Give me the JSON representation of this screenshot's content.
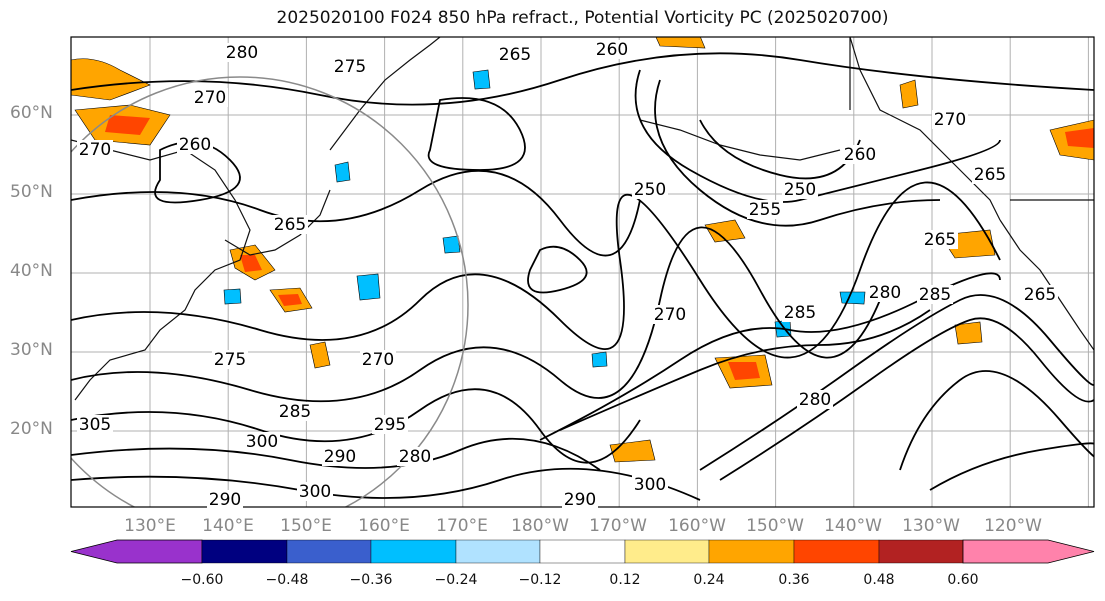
{
  "title": "2025020100 F024 850 hPa refract., Potential Vorticity PC (2025020700)",
  "map": {
    "lat_labels": [
      "60°N",
      "50°N",
      "40°N",
      "30°N",
      "20°N"
    ],
    "lon_labels": [
      "130°E",
      "140°E",
      "150°E",
      "160°E",
      "170°E",
      "180°W",
      "170°W",
      "160°W",
      "150°W",
      "140°W",
      "130°W",
      "120°W"
    ],
    "contour_labels": [
      "280",
      "275",
      "260",
      "265",
      "270",
      "270",
      "260",
      "250",
      "250",
      "255",
      "265",
      "260",
      "265",
      "270",
      "265",
      "285",
      "280",
      "285",
      "275",
      "270",
      "285",
      "300",
      "290",
      "295",
      "280",
      "270",
      "290",
      "300",
      "305",
      "290",
      "300",
      "280",
      "265"
    ],
    "colors": {
      "land_coast": "#111111",
      "contour": "#000000",
      "grid": "#b0b0b0",
      "circle": "#8a8a8a"
    }
  },
  "colorbar": {
    "tick_labels": [
      "-0.60",
      "-0.48",
      "-0.36",
      "-0.24",
      "-0.12",
      "0.12",
      "0.24",
      "0.36",
      "0.48",
      "0.60"
    ],
    "colors": [
      "#9932cc",
      "#000080",
      "#3a5fcd",
      "#00bfff",
      "#b0e2ff",
      "#ffffff",
      "#ffec8b",
      "#ffa500",
      "#ff4500",
      "#b22222",
      "#ff82ab"
    ]
  }
}
